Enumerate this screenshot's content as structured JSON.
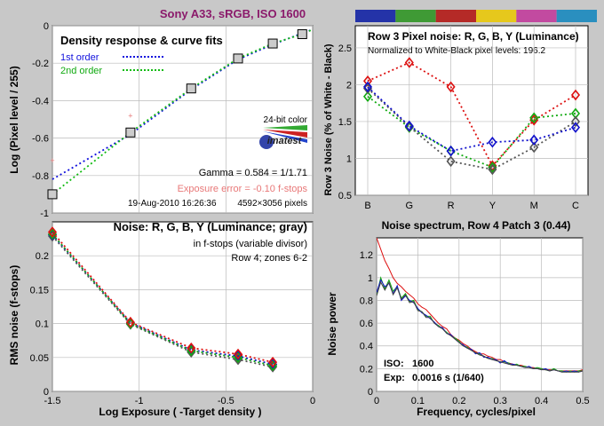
{
  "title": "Sony A33, sRGB, ISO 1600",
  "title_color": "#8b1a6b",
  "colors": {
    "background": "#c8c8c8",
    "plot_bg": "#ffffff",
    "red": "#dd1111",
    "green": "#11aa11",
    "blue": "#1111cc",
    "gray": "#555555",
    "fit1": "#1111dd",
    "fit2": "#11bb11",
    "pink": "#e87878"
  },
  "chart_data": [
    {
      "id": "density",
      "type": "scatter",
      "title": "Density response & curve fits",
      "xlabel": "",
      "ylabel": "Log (Pixel level / 255)",
      "xlim": [
        -1.5,
        0
      ],
      "ylim": [
        -1,
        0
      ],
      "xticks": [
        -1.5,
        -1,
        -0.5,
        0
      ],
      "xtick_labels": [
        "",
        "",
        "",
        ""
      ],
      "yticks": [
        0,
        -0.2,
        -0.4,
        -0.6,
        -0.8,
        -1
      ],
      "ytick_labels": [
        "0",
        "-0.2",
        "-0.4",
        "-0.6",
        "-0.8",
        "-1"
      ],
      "grid": true,
      "points": {
        "x": [
          -1.5,
          -1.05,
          -0.7,
          -0.43,
          -0.23,
          -0.06
        ],
        "y": [
          -0.9,
          -0.57,
          -0.335,
          -0.175,
          -0.095,
          -0.045
        ]
      },
      "outlier_points": {
        "x": [
          -1.5,
          -1.05
        ],
        "y": [
          -0.72,
          -0.48
        ]
      },
      "fits": [
        {
          "name": "1st order",
          "x": [
            -1.5,
            -1.05,
            -0.7,
            -0.43,
            -0.23,
            -0.06,
            0
          ],
          "y": [
            -0.82,
            -0.58,
            -0.34,
            -0.18,
            -0.1,
            -0.04,
            -0.02
          ]
        },
        {
          "name": "2nd order",
          "x": [
            -1.5,
            -1.05,
            -0.7,
            -0.43,
            -0.23,
            -0.06,
            0
          ],
          "y": [
            -0.9,
            -0.57,
            -0.335,
            -0.175,
            -0.095,
            -0.045,
            -0.02
          ]
        }
      ],
      "legend_placement": "top-left",
      "annotations": {
        "color_depth": "24-bit color",
        "logo": "imatest",
        "gamma": "Gamma = 0.584 = 1/1.71",
        "exposure_error": "Exposure error = -0.10 f-stops",
        "timestamp": "19-Aug-2010 16:26:36",
        "pixels": "4592×3056 pixels"
      }
    },
    {
      "id": "row3_noise",
      "type": "line",
      "title": "Row 3 Pixel noise: R, G, B, Y (Luminance)",
      "subtitle": "Normalized to White-Black pixel levels: 196.2",
      "xlabel": "",
      "ylabel": "Row 3 Noise (% of White - Black)",
      "categories": [
        "B",
        "G",
        "R",
        "Y",
        "M",
        "C"
      ],
      "ylim": [
        0.5,
        2.8
      ],
      "yticks": [
        0.5,
        1,
        1.5,
        2,
        2.5
      ],
      "ytick_labels": [
        "0.5",
        "1",
        "1.5",
        "2",
        "2.5"
      ],
      "grid": true,
      "patch_colors": [
        "#2433a8",
        "#3f9a35",
        "#b52a27",
        "#e6c81c",
        "#c24aa0",
        "#2a8fbf"
      ],
      "series": [
        {
          "name": "R",
          "values": [
            2.05,
            2.3,
            1.97,
            0.9,
            1.52,
            1.86
          ]
        },
        {
          "name": "G",
          "values": [
            1.84,
            1.42,
            1.1,
            0.88,
            1.55,
            1.61
          ]
        },
        {
          "name": "B",
          "values": [
            1.97,
            1.44,
            1.1,
            1.22,
            1.25,
            1.42
          ]
        },
        {
          "name": "Y",
          "values": [
            1.95,
            1.43,
            0.96,
            0.85,
            1.15,
            1.5
          ]
        }
      ]
    },
    {
      "id": "noise_fstops",
      "type": "line",
      "title": "Noise: R, G, B, Y (Luminance; gray)",
      "subtitle_lines": [
        "in f-stops (variable divisor)",
        "Row 4; zones 6-2"
      ],
      "xlabel": "Log Exposure ( -Target density )",
      "ylabel": "RMS noise (f-stops)",
      "xlim": [
        -1.5,
        0
      ],
      "ylim": [
        0,
        0.25
      ],
      "xticks": [
        -1.5,
        -1,
        -0.5,
        0
      ],
      "xtick_labels": [
        "-1.5",
        "-1",
        "-0.5",
        "0"
      ],
      "yticks": [
        0,
        0.05,
        0.1,
        0.15,
        0.2
      ],
      "ytick_labels": [
        "0",
        "0.05",
        "0.1",
        "0.15",
        "0.2"
      ],
      "grid": true,
      "x": [
        -1.5,
        -1.05,
        -0.7,
        -0.43,
        -0.23
      ],
      "series": [
        {
          "name": "R",
          "values": [
            0.235,
            0.102,
            0.064,
            0.055,
            0.043
          ]
        },
        {
          "name": "G",
          "values": [
            0.232,
            0.1,
            0.06,
            0.05,
            0.038
          ]
        },
        {
          "name": "B",
          "values": [
            0.231,
            0.101,
            0.061,
            0.052,
            0.04
          ]
        },
        {
          "name": "Y",
          "values": [
            0.229,
            0.099,
            0.058,
            0.047,
            0.036
          ]
        }
      ]
    },
    {
      "id": "spectrum",
      "type": "line",
      "title": "Noise spectrum, Row 4 Patch 3 (0.44)",
      "xlabel": "Frequency, cycles/pixel",
      "ylabel": "Noise power",
      "xlim": [
        0,
        0.5
      ],
      "ylim": [
        0,
        1.35
      ],
      "xticks": [
        0,
        0.1,
        0.2,
        0.3,
        0.4,
        0.5
      ],
      "xtick_labels": [
        "0",
        "0.1",
        "0.2",
        "0.3",
        "0.4",
        "0.5"
      ],
      "yticks": [
        0,
        0.2,
        0.4,
        0.6,
        0.8,
        1,
        1.2
      ],
      "ytick_labels": [
        "0",
        "0.2",
        "0.4",
        "0.6",
        "0.8",
        "1",
        "1.2"
      ],
      "grid": true,
      "x": [
        0,
        0.01,
        0.02,
        0.03,
        0.04,
        0.05,
        0.06,
        0.07,
        0.08,
        0.09,
        0.1,
        0.11,
        0.12,
        0.13,
        0.14,
        0.15,
        0.16,
        0.17,
        0.18,
        0.19,
        0.2,
        0.21,
        0.22,
        0.23,
        0.24,
        0.25,
        0.26,
        0.27,
        0.28,
        0.29,
        0.3,
        0.31,
        0.32,
        0.33,
        0.34,
        0.35,
        0.36,
        0.37,
        0.38,
        0.39,
        0.4,
        0.41,
        0.42,
        0.43,
        0.44,
        0.45,
        0.46,
        0.47,
        0.48,
        0.49,
        0.5
      ],
      "series": [
        {
          "name": "R",
          "values": [
            1.35,
            1.25,
            1.15,
            1.08,
            1.0,
            0.95,
            0.92,
            0.88,
            0.85,
            0.82,
            0.77,
            0.74,
            0.72,
            0.68,
            0.64,
            0.6,
            0.57,
            0.55,
            0.5,
            0.47,
            0.45,
            0.42,
            0.4,
            0.37,
            0.35,
            0.33,
            0.33,
            0.31,
            0.3,
            0.28,
            0.28,
            0.26,
            0.25,
            0.24,
            0.23,
            0.23,
            0.22,
            0.21,
            0.21,
            0.2,
            0.2,
            0.19,
            0.19,
            0.19,
            0.18,
            0.18,
            0.18,
            0.18,
            0.18,
            0.18,
            0.19
          ]
        },
        {
          "name": "G",
          "values": [
            0.85,
            1.0,
            0.9,
            0.98,
            0.88,
            0.92,
            0.82,
            0.86,
            0.79,
            0.8,
            0.72,
            0.7,
            0.66,
            0.66,
            0.6,
            0.58,
            0.55,
            0.52,
            0.49,
            0.47,
            0.44,
            0.4,
            0.39,
            0.36,
            0.34,
            0.33,
            0.31,
            0.29,
            0.29,
            0.27,
            0.26,
            0.26,
            0.25,
            0.23,
            0.24,
            0.22,
            0.22,
            0.21,
            0.2,
            0.21,
            0.2,
            0.19,
            0.18,
            0.2,
            0.18,
            0.18,
            0.17,
            0.18,
            0.17,
            0.18,
            0.18
          ]
        },
        {
          "name": "B",
          "values": [
            0.87,
            0.98,
            0.92,
            0.95,
            0.86,
            0.93,
            0.8,
            0.84,
            0.8,
            0.78,
            0.73,
            0.69,
            0.67,
            0.64,
            0.61,
            0.57,
            0.56,
            0.51,
            0.5,
            0.46,
            0.43,
            0.41,
            0.38,
            0.37,
            0.33,
            0.34,
            0.3,
            0.3,
            0.28,
            0.28,
            0.25,
            0.27,
            0.24,
            0.24,
            0.23,
            0.22,
            0.21,
            0.22,
            0.2,
            0.2,
            0.19,
            0.2,
            0.18,
            0.19,
            0.18,
            0.17,
            0.18,
            0.17,
            0.18,
            0.17,
            0.18
          ]
        },
        {
          "name": "Y",
          "values": [
            0.84,
            0.96,
            0.89,
            0.96,
            0.85,
            0.91,
            0.81,
            0.85,
            0.78,
            0.79,
            0.71,
            0.7,
            0.65,
            0.65,
            0.6,
            0.57,
            0.55,
            0.51,
            0.49,
            0.46,
            0.43,
            0.4,
            0.38,
            0.36,
            0.34,
            0.32,
            0.31,
            0.29,
            0.28,
            0.27,
            0.26,
            0.25,
            0.24,
            0.23,
            0.23,
            0.22,
            0.21,
            0.21,
            0.2,
            0.2,
            0.19,
            0.19,
            0.18,
            0.19,
            0.18,
            0.17,
            0.17,
            0.17,
            0.17,
            0.17,
            0.18
          ]
        }
      ],
      "annotations": {
        "iso_label": "ISO:",
        "iso_value": "1600",
        "exp_label": "Exp:",
        "exp_value": "0.0016 s  (1/640)"
      }
    }
  ]
}
